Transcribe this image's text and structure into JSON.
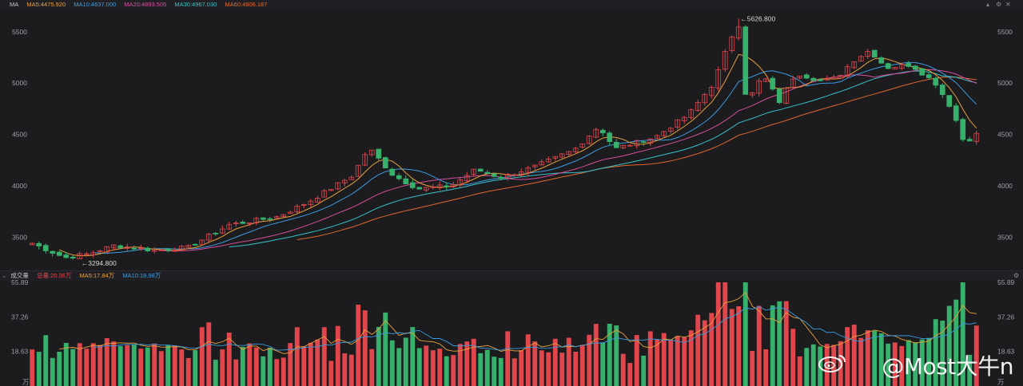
{
  "price_legend": {
    "name": "MA",
    "ma5": "MA5:4475.920",
    "ma10": "MA10:4637.000",
    "ma20": "MA20:4893.505",
    "ma30": "MA30:4967.030",
    "ma60": "MA60:4906.187"
  },
  "volume_legend": {
    "name": "成交量",
    "total": "总量:20.36万",
    "ma5": "MA5:17.84万",
    "ma10": "MA10:18.98万"
  },
  "colors": {
    "up": "#e0464c",
    "down": "#36b06a",
    "ma5": "#e8a13a",
    "ma10": "#3b9be0",
    "ma20": "#d84e9e",
    "ma30": "#35c1c7",
    "ma60": "#e0682a"
  },
  "annotations": {
    "high": "←5626.800",
    "low": "←3294.800"
  },
  "watermark": "@Most大牛n",
  "chart_data": [
    {
      "type": "candlestick",
      "title": "",
      "ylim": [
        3200,
        5700
      ],
      "yticks": [
        3500,
        4000,
        4500,
        5000,
        5500
      ],
      "ytick_labels": [
        "3500",
        "4000",
        "4500",
        "5000",
        "5500"
      ],
      "candle_count": 140,
      "key_levels": [
        {
          "x": 0,
          "close": 3440
        },
        {
          "x": 8,
          "close": 3300
        },
        {
          "x": 14,
          "close": 3340
        },
        {
          "x": 20,
          "close": 3420
        },
        {
          "x": 30,
          "close": 3370
        },
        {
          "x": 38,
          "close": 3400
        },
        {
          "x": 48,
          "close": 3620
        },
        {
          "x": 60,
          "close": 3700
        },
        {
          "x": 68,
          "close": 3860
        },
        {
          "x": 78,
          "close": 4100
        },
        {
          "x": 82,
          "close": 4370
        },
        {
          "x": 88,
          "close": 4100
        },
        {
          "x": 94,
          "close": 3970
        },
        {
          "x": 102,
          "close": 4000
        },
        {
          "x": 108,
          "close": 4160
        },
        {
          "x": 114,
          "close": 4080
        },
        {
          "x": 122,
          "close": 4180
        },
        {
          "x": 132,
          "close": 4350
        },
        {
          "x": 138,
          "close": 4580
        },
        {
          "x": 142,
          "close": 4360
        },
        {
          "x": 152,
          "close": 4480
        },
        {
          "x": 160,
          "close": 4700
        },
        {
          "x": 166,
          "close": 5000
        },
        {
          "x": 170,
          "close": 5420
        },
        {
          "x": 172,
          "close": 5600
        },
        {
          "x": 174,
          "close": 4800
        },
        {
          "x": 178,
          "close": 5080
        },
        {
          "x": 182,
          "close": 4820
        },
        {
          "x": 186,
          "close": 5100
        },
        {
          "x": 192,
          "close": 5020
        },
        {
          "x": 196,
          "close": 5050
        },
        {
          "x": 200,
          "close": 5220
        },
        {
          "x": 204,
          "close": 5320
        },
        {
          "x": 208,
          "close": 5150
        },
        {
          "x": 214,
          "close": 5180
        },
        {
          "x": 220,
          "close": 5000
        },
        {
          "x": 224,
          "close": 4750
        },
        {
          "x": 227,
          "close": 4420
        },
        {
          "x": 230,
          "close": 4500
        }
      ],
      "extremes": {
        "high": 5626.8,
        "low": 3294.8
      }
    },
    {
      "type": "bar",
      "title": "",
      "ylim": [
        0,
        55.89
      ],
      "yticks": [
        18.63,
        37.26,
        55.89
      ],
      "ytick_labels": [
        "18.63",
        "37.26",
        "55.89"
      ],
      "unit_label": "万"
    }
  ]
}
